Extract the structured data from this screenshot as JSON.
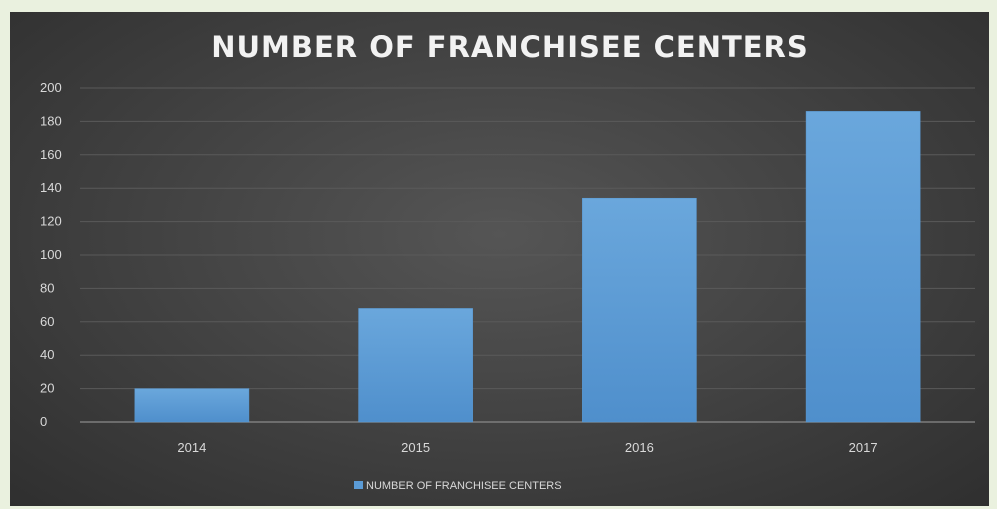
{
  "chart_data": {
    "type": "bar",
    "title": "NUMBER OF FRANCHISEE CENTERS",
    "categories": [
      "2014",
      "2015",
      "2016",
      "2017"
    ],
    "series": [
      {
        "name": "NUMBER OF FRANCHISEE CENTERS",
        "values": [
          20,
          68,
          134,
          186
        ]
      }
    ],
    "ylim": [
      0,
      200
    ],
    "yticks": [
      "0",
      "20",
      "40",
      "60",
      "80",
      "100",
      "120",
      "140",
      "160",
      "180",
      "200"
    ],
    "grid": true,
    "legend_position": "bottom",
    "colors": {
      "bar": "#5b9bd5",
      "background": "#404040",
      "page": "#eaf1df",
      "text": "#d9d9d9"
    }
  }
}
